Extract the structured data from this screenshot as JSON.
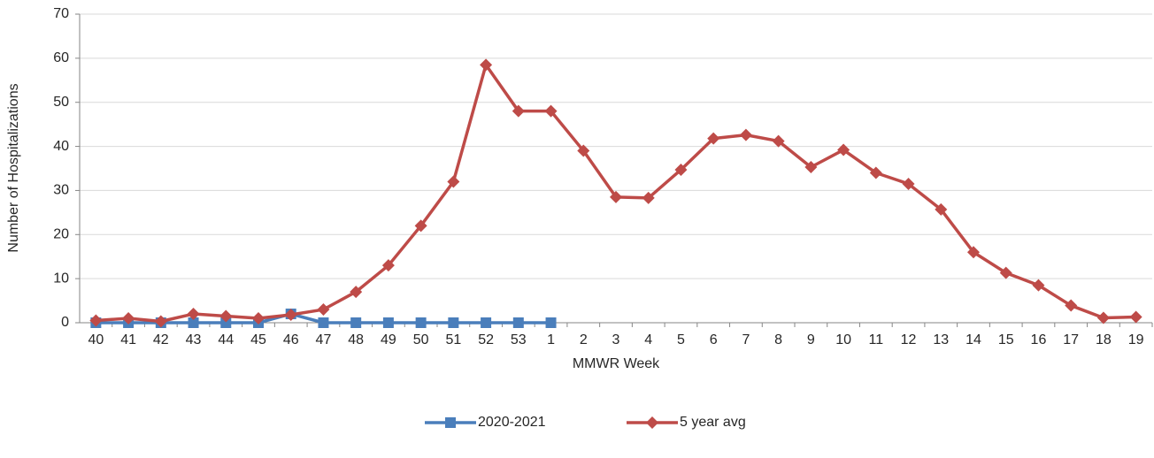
{
  "chart_data": {
    "type": "line",
    "x_label": "MMWR Week",
    "y_label": "Number of Hospitalizations",
    "categories": [
      "40",
      "41",
      "42",
      "43",
      "44",
      "45",
      "46",
      "47",
      "48",
      "49",
      "50",
      "51",
      "52",
      "53",
      "1",
      "2",
      "3",
      "4",
      "5",
      "6",
      "7",
      "8",
      "9",
      "10",
      "11",
      "12",
      "13",
      "14",
      "15",
      "16",
      "17",
      "18",
      "19"
    ],
    "series": [
      {
        "name": "2020-2021",
        "color": "#4a7ebb",
        "marker": "square",
        "values": [
          0,
          0,
          0,
          0,
          0,
          0,
          2,
          0,
          0,
          0,
          0,
          0,
          0,
          0,
          0,
          null,
          null,
          null,
          null,
          null,
          null,
          null,
          null,
          null,
          null,
          null,
          null,
          null,
          null,
          null,
          null,
          null,
          null
        ]
      },
      {
        "name": "5 year avg",
        "color": "#be4b48",
        "marker": "diamond",
        "values": [
          0.5,
          1,
          0.3,
          2,
          1.5,
          1,
          1.8,
          3,
          7,
          13,
          22,
          32,
          58.5,
          48,
          48,
          39,
          28.5,
          28.3,
          34.7,
          41.8,
          42.6,
          41.2,
          35.3,
          39.2,
          34,
          31.5,
          25.7,
          16,
          11.3,
          8.5,
          3.9,
          1.1,
          1.3
        ]
      }
    ],
    "ylim": [
      0,
      70
    ],
    "yticks": [
      0,
      10,
      20,
      30,
      40,
      50,
      60,
      70
    ],
    "grid": true,
    "legend": "bottom"
  }
}
